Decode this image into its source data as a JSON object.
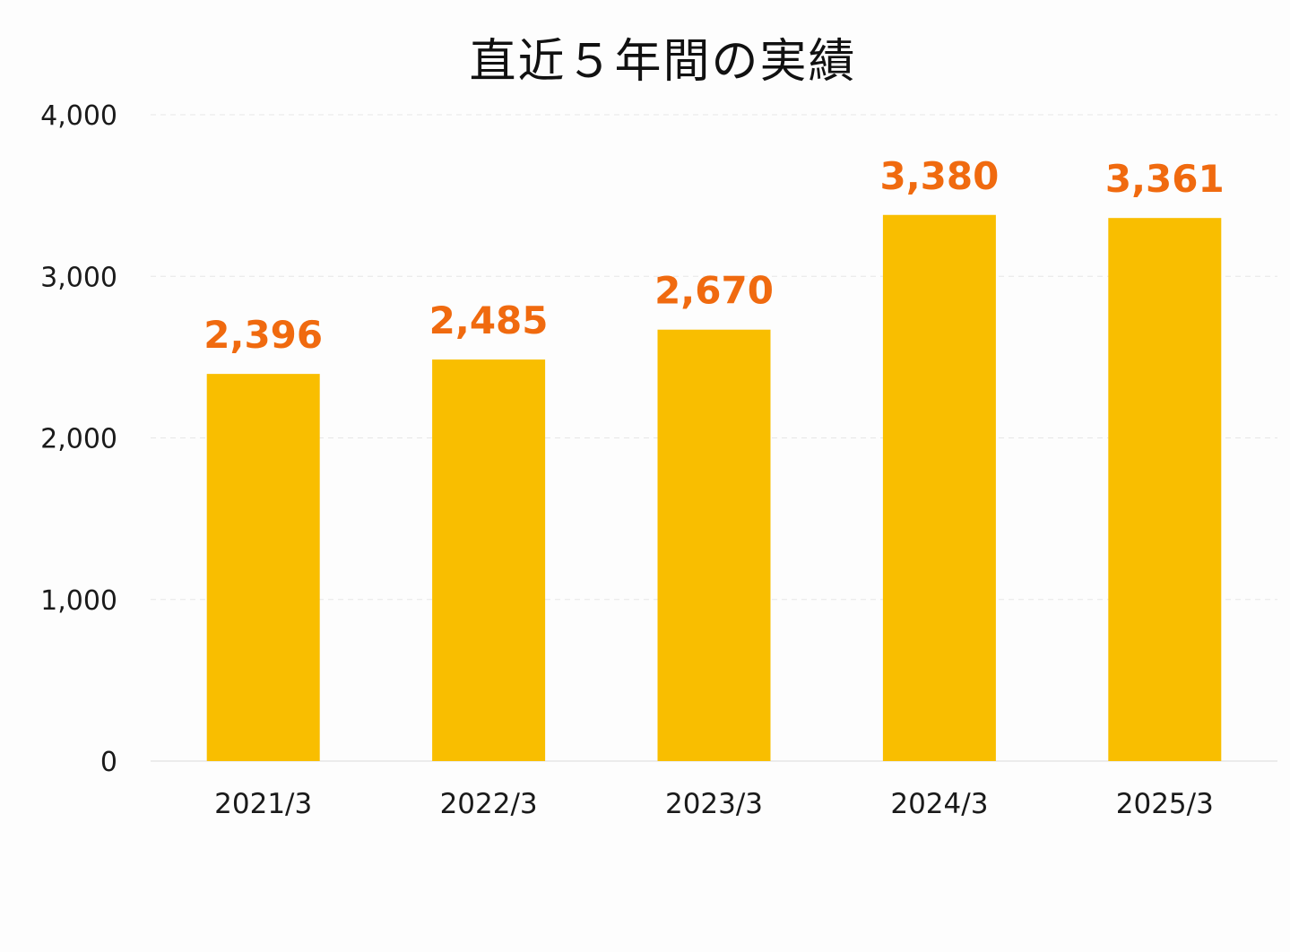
{
  "chart_data": {
    "type": "bar",
    "title": "直近５年間の実績",
    "categories": [
      "2021/3",
      "2022/3",
      "2023/3",
      "2024/3",
      "2025/3"
    ],
    "values": [
      2396,
      2485,
      2670,
      3380,
      3361
    ],
    "data_labels": [
      "2,396",
      "2,485",
      "2,670",
      "3,380",
      "3,361"
    ],
    "yticks": [
      0,
      1000,
      2000,
      3000,
      4000
    ],
    "ytick_labels": [
      "0",
      "1,000",
      "2,000",
      "3,000",
      "4,000"
    ],
    "ylim": [
      0,
      4000
    ],
    "xlabel": "",
    "ylabel": "",
    "grid": true,
    "legend": "none",
    "bar_color": "#f9be00",
    "label_color": "#f06a0f",
    "grid_color": "#e6e6e6"
  }
}
